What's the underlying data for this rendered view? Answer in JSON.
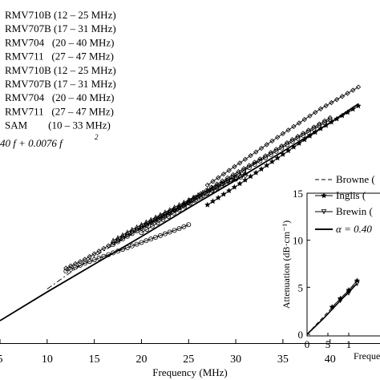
{
  "chart_data": [
    {
      "type": "line",
      "xlabel": "Frequency (MHz)",
      "ylabel": "",
      "xlim": [
        5,
        43
      ],
      "x_ticks": [
        "5",
        "10",
        "15",
        "20",
        "25",
        "30",
        "35",
        "40"
      ],
      "legend_placement": "top-left",
      "legend_entries": [
        "RMV710B (12 – 25 MHz)",
        "RMV707B (17 – 31 MHz)",
        "RMV704   (20 – 40 MHz)",
        "RMV711   (27 – 47 MHz)",
        "RMV710B (12 – 25 MHz)",
        "RMV707B (17 – 31 MHz)",
        "RMV704   (20 – 40 MHz)",
        "RMV711   (27 – 47 MHz)",
        "SAM        (10 – 33 MHz)"
      ],
      "equation_text": "40 f + 0.0076 f",
      "equation_superscript": "2",
      "series": [
        {
          "marker": "diamond",
          "x": [
            12,
            14,
            16,
            18,
            20,
            22,
            24,
            25
          ],
          "y": [
            7.4,
            8.3,
            9.4,
            10.5,
            11.6,
            12.6,
            13.5,
            14.1
          ]
        },
        {
          "marker": "triangle-up",
          "x": [
            17,
            19,
            21,
            23,
            25,
            27,
            29,
            31
          ],
          "y": [
            10.2,
            11.3,
            12.3,
            13.3,
            14.3,
            15.3,
            16.2,
            17.0
          ]
        },
        {
          "marker": "diamond",
          "x": [
            20,
            24,
            28,
            32,
            36,
            40
          ],
          "y": [
            11.4,
            13.6,
            15.9,
            18.1,
            20.4,
            22.6
          ]
        },
        {
          "marker": "diamond",
          "x": [
            27,
            31,
            35,
            39,
            43
          ],
          "y": [
            15.8,
            18.4,
            21.0,
            23.5,
            25.7
          ]
        },
        {
          "marker": "circle",
          "x": [
            12,
            14,
            16,
            18,
            20,
            22,
            24,
            25
          ],
          "y": [
            7.1,
            7.9,
            8.6,
            9.3,
            10.0,
            10.7,
            11.4,
            11.8
          ]
        },
        {
          "marker": "circle",
          "x": [
            17,
            19,
            21,
            23,
            25,
            27,
            29,
            31
          ],
          "y": [
            9.8,
            10.9,
            12.0,
            13.0,
            14.0,
            15.0,
            16.0,
            16.8
          ]
        },
        {
          "marker": "circle",
          "x": [
            20,
            24,
            28,
            32,
            36,
            40
          ],
          "y": [
            11.0,
            13.3,
            15.6,
            17.9,
            20.2,
            22.4
          ]
        },
        {
          "marker": "star",
          "x": [
            27,
            31,
            35,
            39,
            43
          ],
          "y": [
            13.8,
            16.3,
            18.9,
            21.5,
            23.8
          ]
        },
        {
          "marker": "none",
          "style": "dashdot",
          "x": [
            10,
            14,
            18,
            22,
            26,
            30,
            33
          ],
          "y": [
            5.3,
            8.0,
            10.3,
            12.5,
            14.7,
            16.8,
            18.6
          ]
        },
        {
          "marker": "none",
          "style": "solid",
          "x": [
            5,
            10,
            15,
            20,
            25,
            30,
            35,
            40,
            43
          ],
          "y": [
            2.1,
            5.0,
            7.8,
            10.6,
            13.5,
            16.3,
            19.2,
            22.1,
            24.0
          ]
        }
      ]
    },
    {
      "type": "line",
      "xlabel": "Freque",
      "ylabel": "Attenuation (dB·cm⁻¹)",
      "ylim": [
        0,
        15
      ],
      "xlim": [
        0,
        12
      ],
      "y_ticks": [
        "0",
        "5",
        "10",
        "15"
      ],
      "x_ticks": [
        "0",
        "5",
        "1"
      ],
      "legend_entries": [
        "Browne",
        "Inglis",
        "Brewin",
        "α = 0.40"
      ],
      "legend_suffixes": [
        "(",
        "(",
        "(",
        ""
      ],
      "series": [
        {
          "name": "Browne",
          "style": "dashed",
          "x": [
            0,
            4,
            8,
            12
          ],
          "y": [
            0,
            1.9,
            3.8,
            5.6
          ]
        },
        {
          "name": "Inglis",
          "marker": "star",
          "x": [
            6,
            8,
            10,
            12
          ],
          "y": [
            2.9,
            3.8,
            4.7,
            5.7
          ]
        },
        {
          "name": "Brewin",
          "marker": "triangle-down",
          "x": [
            8,
            10,
            12
          ],
          "y": [
            3.6,
            4.4,
            5.4
          ]
        },
        {
          "name": "α = 0.40",
          "style": "solid",
          "x": [
            0,
            4,
            8,
            12
          ],
          "y": [
            0,
            1.7,
            3.6,
            5.4
          ]
        }
      ]
    }
  ]
}
